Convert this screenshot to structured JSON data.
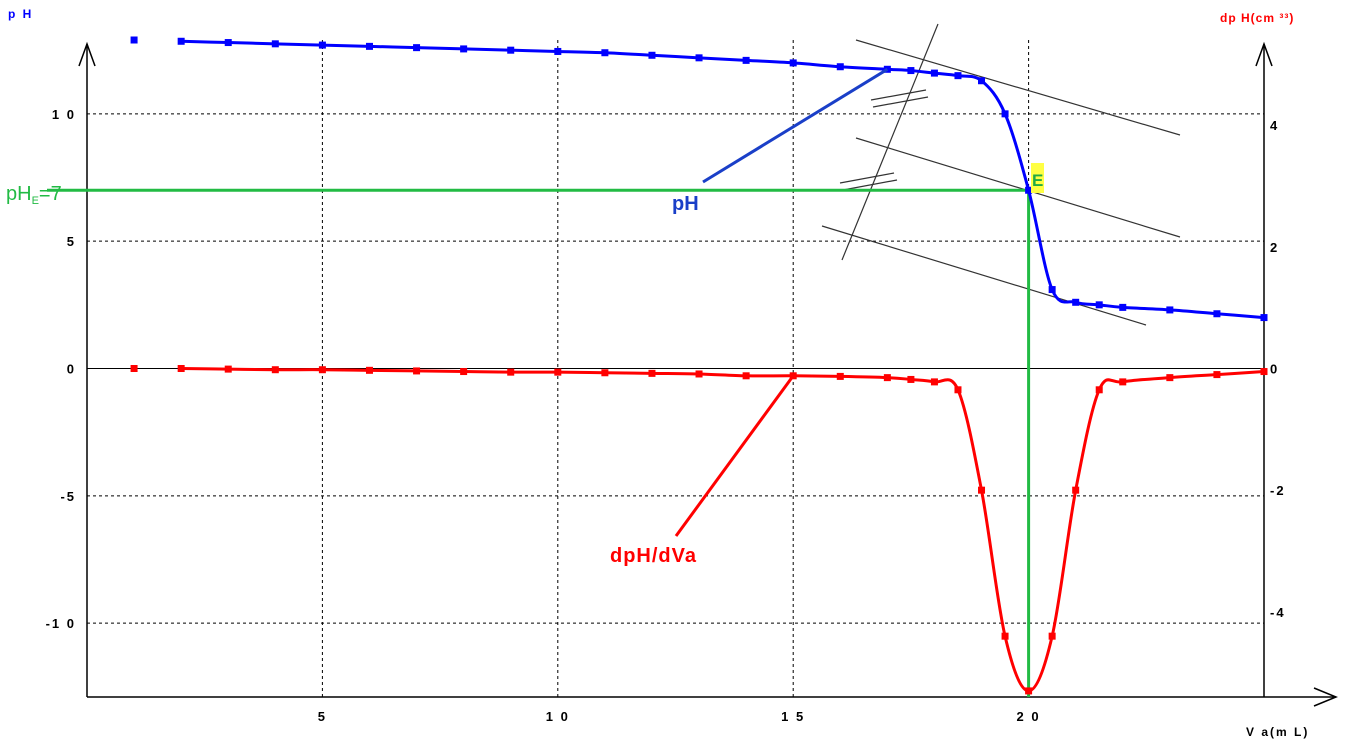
{
  "chart_data": {
    "type": "line",
    "axes": {
      "x": {
        "label": "V a(m L)",
        "range": [
          0,
          25
        ],
        "ticks": [
          5,
          10,
          15,
          20
        ],
        "tick_labels": [
          "5",
          "1 0",
          "1 5",
          "2 0"
        ]
      },
      "y_left": {
        "label": "p H",
        "range": [
          -12.9,
          12.9
        ],
        "ticks": [
          10,
          5,
          0,
          -5,
          -10
        ],
        "tick_labels": [
          "1 0",
          "5",
          "0",
          "-5",
          "-1 0"
        ]
      },
      "y_right": {
        "label": "dp H(cm ³³)",
        "range": [
          -5.4,
          5.4
        ],
        "ticks": [
          4,
          2,
          0,
          -2,
          -4
        ],
        "tick_labels": [
          "4",
          "2",
          "0",
          "-2",
          "-4"
        ]
      }
    },
    "grid": true,
    "series": [
      {
        "name": "pH",
        "axis": "left",
        "color": "#0000ff",
        "x": [
          1,
          2,
          3,
          4,
          5,
          6,
          7,
          8,
          9,
          10,
          11,
          12,
          13,
          14,
          15,
          16,
          17,
          17.5,
          18,
          18.5,
          19,
          19.5,
          20,
          20.5,
          21,
          21.5,
          22,
          23,
          24,
          25
        ],
        "y": [
          12.9,
          12.85,
          12.8,
          12.75,
          12.7,
          12.65,
          12.6,
          12.55,
          12.5,
          12.45,
          12.4,
          12.3,
          12.2,
          12.1,
          12.0,
          11.85,
          11.75,
          11.7,
          11.6,
          11.5,
          11.3,
          10.0,
          7.0,
          3.1,
          2.6,
          2.5,
          2.4,
          2.3,
          2.15,
          2.0
        ]
      },
      {
        "name": "dpH/dVa",
        "axis": "right",
        "color": "#ff0000",
        "x": [
          1,
          2,
          3,
          4,
          5,
          6,
          7,
          8,
          9,
          10,
          11,
          12,
          13,
          14,
          15,
          16,
          17,
          17.5,
          18,
          18.5,
          19,
          19.5,
          20,
          20.5,
          21,
          21.5,
          22,
          23,
          24,
          25
        ],
        "y": [
          0.0,
          -0.0,
          -0.01,
          -0.02,
          -0.02,
          -0.03,
          -0.04,
          -0.05,
          -0.06,
          -0.06,
          -0.07,
          -0.08,
          -0.09,
          -0.12,
          -0.12,
          -0.13,
          -0.15,
          -0.18,
          -0.22,
          -0.35,
          -2.0,
          -4.4,
          -5.3,
          -4.4,
          -2.0,
          -0.35,
          -0.22,
          -0.15,
          -0.1,
          -0.05
        ]
      }
    ],
    "equivalence": {
      "x": 20,
      "pH": 7,
      "label": "E",
      "ph_label_main": "pH",
      "ph_label_sub": "E",
      "ph_label_value": "=7"
    },
    "annotations": [
      {
        "text": "pH",
        "series": "pH"
      },
      {
        "text": "dpH/dVa",
        "series": "dpH/dVa"
      }
    ]
  }
}
